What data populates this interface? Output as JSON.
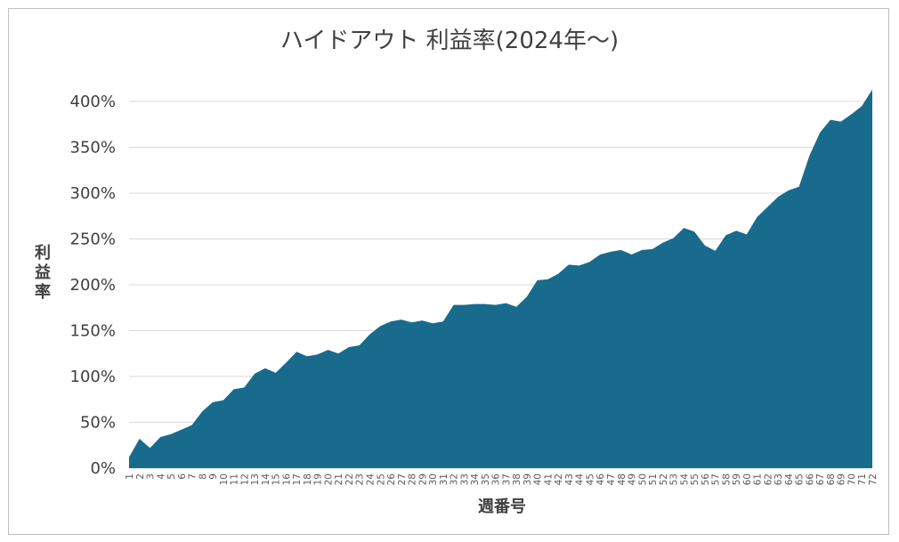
{
  "chart_data": {
    "type": "area",
    "title": "ハイドアウト 利益率(2024年〜)",
    "xlabel": "週番号",
    "ylabel": "利益率",
    "ylim": [
      0,
      400
    ],
    "y_ticks": [
      0,
      50,
      100,
      150,
      200,
      250,
      300,
      350,
      400
    ],
    "y_tick_suffix": "%",
    "grid": true,
    "legend": "none",
    "color": "#186b8c",
    "series": [
      {
        "x": [
          1,
          2,
          3,
          4,
          5,
          6,
          7,
          8,
          9,
          10,
          11,
          12,
          13,
          14,
          15,
          16,
          17,
          18,
          19,
          20,
          21,
          22,
          23,
          24,
          25,
          26,
          27,
          28,
          29,
          30,
          31,
          32,
          33,
          34,
          35,
          36,
          37,
          38,
          39,
          40,
          41,
          42,
          43,
          44,
          45,
          46,
          47,
          48,
          49,
          50,
          51,
          52,
          53,
          54,
          55,
          56,
          57,
          58,
          59,
          60,
          61,
          62,
          63,
          64,
          65,
          66,
          67,
          68,
          69,
          70,
          71,
          72
        ],
        "values": [
          12,
          32,
          22,
          34,
          37,
          42,
          47,
          62,
          72,
          74,
          86,
          88,
          103,
          109,
          104,
          115,
          127,
          122,
          124,
          129,
          125,
          132,
          134,
          146,
          155,
          160,
          162,
          159,
          161,
          158,
          160,
          178,
          178,
          179,
          179,
          178,
          180,
          176,
          187,
          205,
          206,
          212,
          222,
          221,
          225,
          233,
          236,
          238,
          233,
          238,
          239,
          246,
          251,
          262,
          258,
          243,
          237,
          254,
          259,
          255,
          274,
          285,
          296,
          303,
          307,
          341,
          366,
          380,
          378,
          386,
          395,
          413
        ]
      }
    ]
  }
}
